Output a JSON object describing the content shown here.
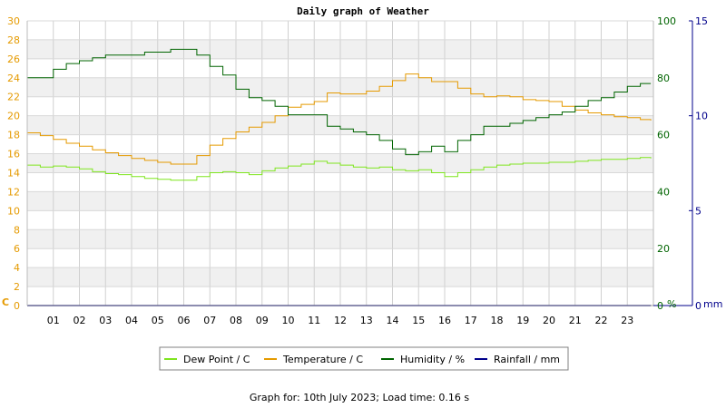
{
  "chart_data": {
    "type": "line",
    "title": "Daily graph of Weather",
    "footer": "Graph for: 10th July 2023; Load time: 0.16 s",
    "x_ticks": [
      "01",
      "02",
      "03",
      "04",
      "05",
      "06",
      "07",
      "08",
      "09",
      "10",
      "11",
      "12",
      "13",
      "14",
      "15",
      "16",
      "17",
      "18",
      "19",
      "20",
      "21",
      "22",
      "23"
    ],
    "xlim": [
      0,
      24
    ],
    "axes": {
      "left": {
        "unit": "C",
        "min": 0,
        "max": 30,
        "ticks": [
          0,
          2,
          4,
          6,
          8,
          10,
          12,
          14,
          16,
          18,
          20,
          22,
          24,
          26,
          28,
          30
        ],
        "color": "#e59a00"
      },
      "right1": {
        "unit": "%",
        "min": 0,
        "max": 100,
        "ticks": [
          0,
          20,
          40,
          60,
          80,
          100
        ],
        "color": "#006400"
      },
      "right2": {
        "unit": "mm",
        "min": 0,
        "max": 15,
        "ticks": [
          0,
          5,
          10,
          15
        ],
        "color": "#00008b"
      }
    },
    "grid": true,
    "legend_position": "bottom",
    "series": [
      {
        "name": "Dew Point / C",
        "axis": "left",
        "color": "#7fe51f",
        "x": [
          0,
          0.5,
          1,
          1.5,
          2,
          2.5,
          3,
          3.5,
          4,
          4.5,
          5,
          5.5,
          6,
          6.5,
          7,
          7.5,
          8,
          8.5,
          9,
          9.5,
          10,
          10.5,
          11,
          11.5,
          12,
          12.5,
          13,
          13.5,
          14,
          14.5,
          15,
          15.5,
          16,
          16.5,
          17,
          17.5,
          18,
          18.5,
          19,
          19.5,
          20,
          20.5,
          21,
          21.5,
          22,
          22.5,
          23,
          23.5,
          23.9
        ],
        "y": [
          14.8,
          14.6,
          14.7,
          14.6,
          14.4,
          14.1,
          13.9,
          13.8,
          13.6,
          13.4,
          13.3,
          13.2,
          13.2,
          13.6,
          14.0,
          14.1,
          14.0,
          13.8,
          14.2,
          14.5,
          14.7,
          14.9,
          15.2,
          15.0,
          14.8,
          14.6,
          14.5,
          14.6,
          14.3,
          14.2,
          14.3,
          14.0,
          13.6,
          14.0,
          14.3,
          14.6,
          14.8,
          14.9,
          15.0,
          15.0,
          15.1,
          15.1,
          15.2,
          15.3,
          15.4,
          15.4,
          15.5,
          15.6,
          15.5
        ]
      },
      {
        "name": "Temperature / C",
        "axis": "left",
        "color": "#e59a00",
        "x": [
          0,
          0.5,
          1,
          1.5,
          2,
          2.5,
          3,
          3.5,
          4,
          4.5,
          5,
          5.5,
          6,
          6.5,
          7,
          7.5,
          8,
          8.5,
          9,
          9.5,
          10,
          10.5,
          11,
          11.5,
          12,
          12.5,
          13,
          13.5,
          14,
          14.5,
          15,
          15.5,
          16,
          16.5,
          17,
          17.5,
          18,
          18.5,
          19,
          19.5,
          20,
          20.5,
          21,
          21.5,
          22,
          22.5,
          23,
          23.5,
          23.9
        ],
        "y": [
          18.2,
          17.9,
          17.5,
          17.1,
          16.8,
          16.4,
          16.1,
          15.8,
          15.5,
          15.3,
          15.1,
          14.9,
          14.9,
          15.8,
          16.9,
          17.6,
          18.3,
          18.8,
          19.3,
          20.0,
          20.9,
          21.2,
          21.5,
          22.4,
          22.3,
          22.3,
          22.6,
          23.1,
          23.7,
          24.4,
          24.0,
          23.6,
          23.6,
          22.9,
          22.3,
          22.0,
          22.1,
          22.0,
          21.7,
          21.6,
          21.5,
          21.0,
          20.6,
          20.3,
          20.1,
          19.9,
          19.8,
          19.6,
          19.5
        ]
      },
      {
        "name": "Humidity / %",
        "axis": "right1",
        "color": "#006400",
        "x": [
          0,
          0.5,
          1,
          1.5,
          2,
          2.5,
          3,
          3.5,
          4,
          4.5,
          5,
          5.5,
          6,
          6.5,
          7,
          7.5,
          8,
          8.5,
          9,
          9.5,
          10,
          10.5,
          11,
          11.5,
          12,
          12.5,
          13,
          13.5,
          14,
          14.5,
          15,
          15.5,
          16,
          16.5,
          17,
          17.5,
          18,
          18.5,
          19,
          19.5,
          20,
          20.5,
          21,
          21.5,
          22,
          22.5,
          23,
          23.5,
          23.9
        ],
        "y": [
          80,
          80,
          83,
          85,
          86,
          87,
          88,
          88,
          88,
          89,
          89,
          90,
          90,
          88,
          84,
          81,
          76,
          73,
          72,
          70,
          67,
          67,
          67,
          63,
          62,
          61,
          60,
          58,
          55,
          53,
          54,
          56,
          54,
          58,
          60,
          63,
          63,
          64,
          65,
          66,
          67,
          68,
          70,
          72,
          73,
          75,
          77,
          78,
          78
        ]
      },
      {
        "name": "Rainfall / mm",
        "axis": "right2",
        "color": "#00008b",
        "x": [
          0,
          23.9
        ],
        "y": [
          0,
          0
        ]
      }
    ]
  }
}
